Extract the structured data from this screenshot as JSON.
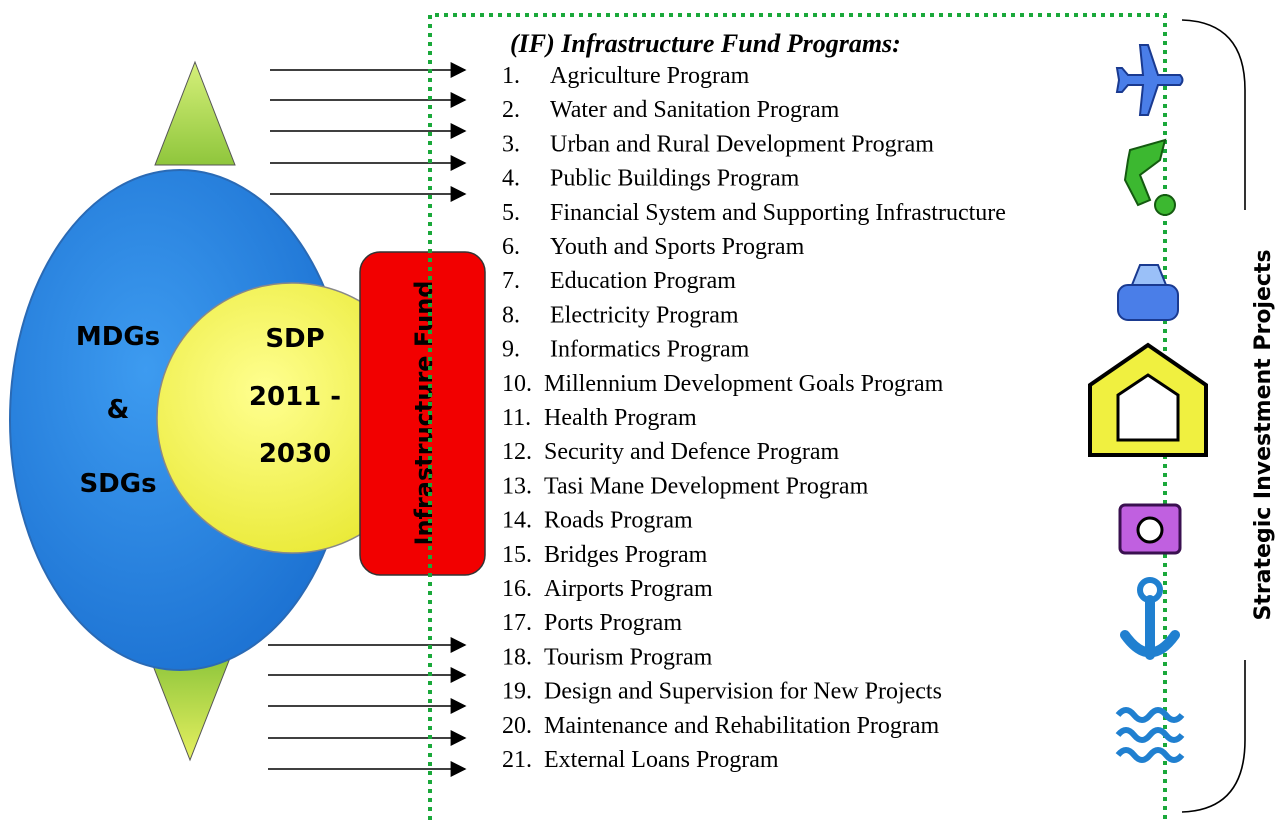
{
  "left": {
    "outer": [
      "MDGs",
      "&",
      "SDGs"
    ],
    "inner": [
      "SDP",
      "2011 -",
      "2030"
    ],
    "fund": "Infrastructure Fund"
  },
  "list": {
    "title": "(IF) Infrastructure Fund Programs:",
    "items": [
      {
        "number": "1.",
        "label": "Agriculture Program"
      },
      {
        "number": "2.",
        "label": "Water and Sanitation Program"
      },
      {
        "number": "3.",
        "label": "Urban and Rural Development Program"
      },
      {
        "number": "4.",
        "label": "Public Buildings Program"
      },
      {
        "number": "5.",
        "label": "Financial System and Supporting Infrastructure"
      },
      {
        "number": "6.",
        "label": "Youth and Sports Program"
      },
      {
        "number": "7.",
        "label": "Education Program"
      },
      {
        "number": "8.",
        "label": "Electricity Program"
      },
      {
        "number": "9.",
        "label": "Informatics Program"
      },
      {
        "number": "10.",
        "label": "Millennium Development Goals Program"
      },
      {
        "number": "11.",
        "label": "Health Program"
      },
      {
        "number": "12.",
        "label": "Security and Defence Program"
      },
      {
        "number": "13.",
        "label": "Tasi Mane Development Program"
      },
      {
        "number": "14.",
        "label": "Roads Program"
      },
      {
        "number": "15.",
        "label": "Bridges Program"
      },
      {
        "number": "16.",
        "label": "Airports Program"
      },
      {
        "number": "17.",
        "label": "Ports Program"
      },
      {
        "number": "18.",
        "label": "Tourism Program"
      },
      {
        "number": "19.",
        "label": "Design and Supervision for New Projects"
      },
      {
        "number": "20.",
        "label": "Maintenance and Rehabilitation Program"
      },
      {
        "number": "21.",
        "label": "External Loans Program"
      }
    ]
  },
  "side_label": "Strategic Investment Projects"
}
